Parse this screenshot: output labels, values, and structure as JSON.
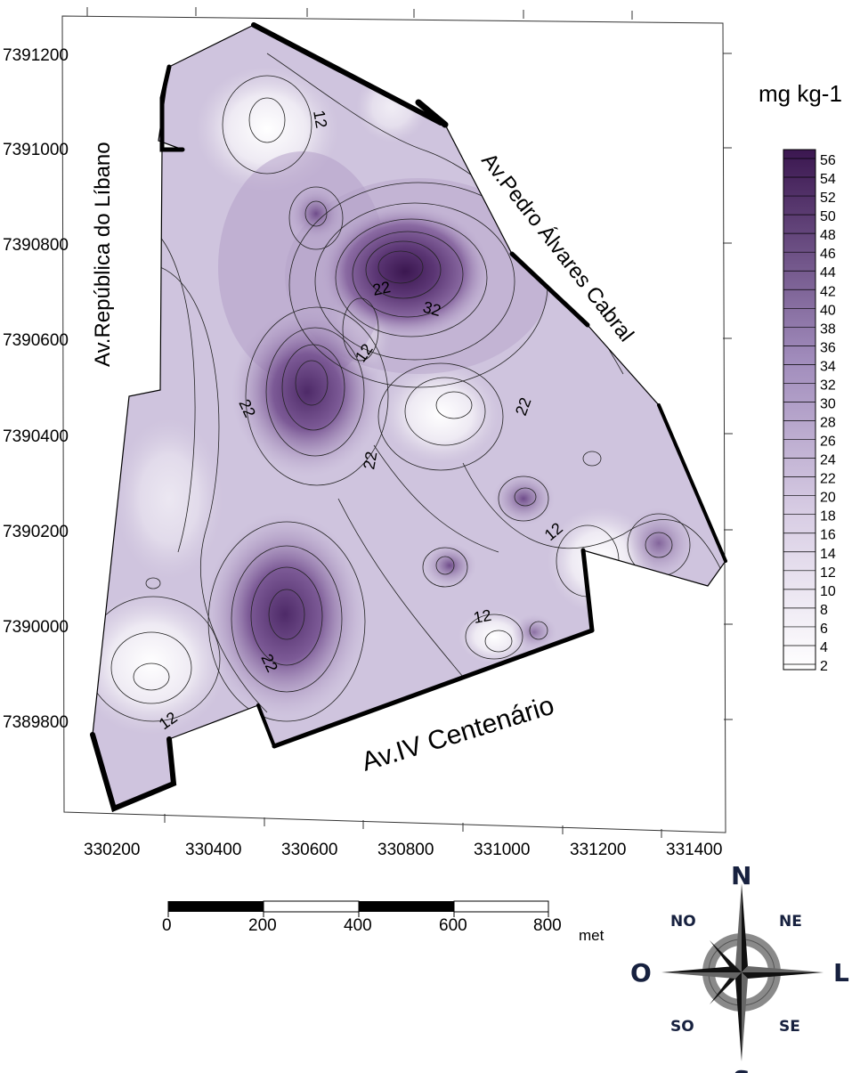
{
  "map": {
    "y_ticks": [
      "7391200",
      "7391000",
      "7390800",
      "7390600",
      "7390400",
      "7390200",
      "7390000",
      "7389800"
    ],
    "x_ticks": [
      "330200",
      "330400",
      "330600",
      "330800",
      "331000",
      "331200",
      "331400"
    ],
    "roads": {
      "republica": "Av.República do Líbano",
      "pedro": "Av.Pedro Álvares Cabral",
      "centenario": "Av.IV Centenário"
    },
    "contour_labels": [
      "12",
      "22",
      "32",
      "12",
      "22",
      "22",
      "22",
      "12",
      "12",
      "22",
      "12"
    ]
  },
  "legend": {
    "unit": "mg kg-1",
    "levels": [
      "56",
      "54",
      "52",
      "50",
      "48",
      "46",
      "44",
      "42",
      "40",
      "38",
      "36",
      "34",
      "32",
      "30",
      "28",
      "26",
      "24",
      "22",
      "20",
      "18",
      "16",
      "14",
      "12",
      "10",
      "8",
      "6",
      "4",
      "2"
    ],
    "color_low": "#ffffff",
    "color_high": "#3b1750"
  },
  "scale_bar": {
    "labels": [
      "0",
      "200",
      "400",
      "600",
      "800"
    ],
    "unit": "met"
  },
  "compass": {
    "n": "N",
    "s": "S",
    "o": "O",
    "l": "L",
    "no": "NO",
    "ne": "NE",
    "so": "SO",
    "se": "SE"
  }
}
